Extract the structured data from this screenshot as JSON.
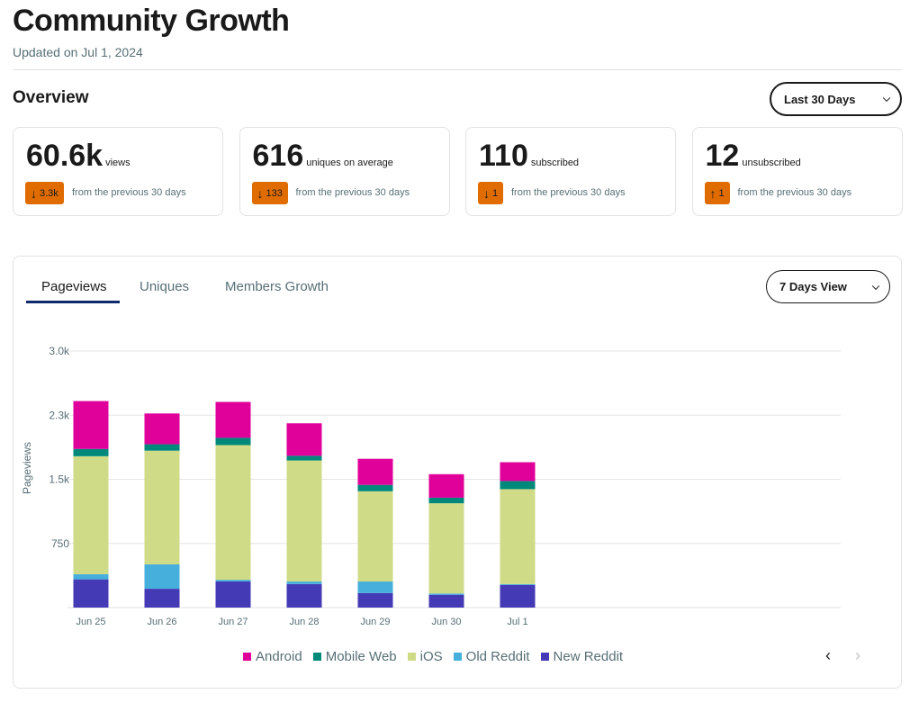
{
  "header": {
    "title": "Community Growth",
    "updated": "Updated on Jul 1, 2024"
  },
  "overview": {
    "title": "Overview",
    "range": "Last 30 Days"
  },
  "cards": [
    {
      "value": "60.6k",
      "unit": "views",
      "direction": "down",
      "change": "3.3k",
      "from": "from the previous 30 days"
    },
    {
      "value": "616",
      "unit": "uniques on average",
      "direction": "down",
      "change": "133",
      "from": "from the previous 30 days"
    },
    {
      "value": "110",
      "unit": "subscribed",
      "direction": "down",
      "change": "1",
      "from": "from the previous 30 days"
    },
    {
      "value": "12",
      "unit": "unsubscribed",
      "direction": "up",
      "change": "1",
      "from": "from the previous 30 days"
    }
  ],
  "tabs": [
    "Pageviews",
    "Uniques",
    "Members Growth"
  ],
  "view_select": "7 Days View",
  "colors": {
    "badge": "#e06c00",
    "Android": "#e0009a",
    "Mobile Web": "#00897b",
    "iOS": "#d0db87",
    "Old Reddit": "#46afdb",
    "New Reddit": "#453ab5"
  },
  "chart_data": {
    "type": "bar",
    "stacked": true,
    "ylabel": "Pageviews",
    "ylim": [
      0,
      3000
    ],
    "yticks": [
      "3.0k",
      "2.3k",
      "1.5k",
      "750"
    ],
    "ytick_values": [
      3000,
      2250,
      1500,
      750
    ],
    "categories": [
      "Jun 25",
      "Jun 26",
      "Jun 27",
      "Jun 28",
      "Jun 29",
      "Jun 30",
      "Jul 1"
    ],
    "series": [
      {
        "name": "New Reddit",
        "values": [
          330,
          220,
          305,
          275,
          170,
          150,
          265
        ]
      },
      {
        "name": "Old Reddit",
        "values": [
          60,
          285,
          20,
          30,
          135,
          15,
          10
        ]
      },
      {
        "name": "iOS",
        "values": [
          1380,
          1330,
          1575,
          1415,
          1055,
          1055,
          1110
        ]
      },
      {
        "name": "Mobile Web",
        "values": [
          85,
          75,
          85,
          55,
          75,
          65,
          95
        ]
      },
      {
        "name": "Android",
        "values": [
          560,
          360,
          420,
          380,
          305,
          275,
          220
        ]
      }
    ],
    "legend": [
      "Android",
      "Mobile Web",
      "iOS",
      "Old Reddit",
      "New Reddit"
    ]
  }
}
